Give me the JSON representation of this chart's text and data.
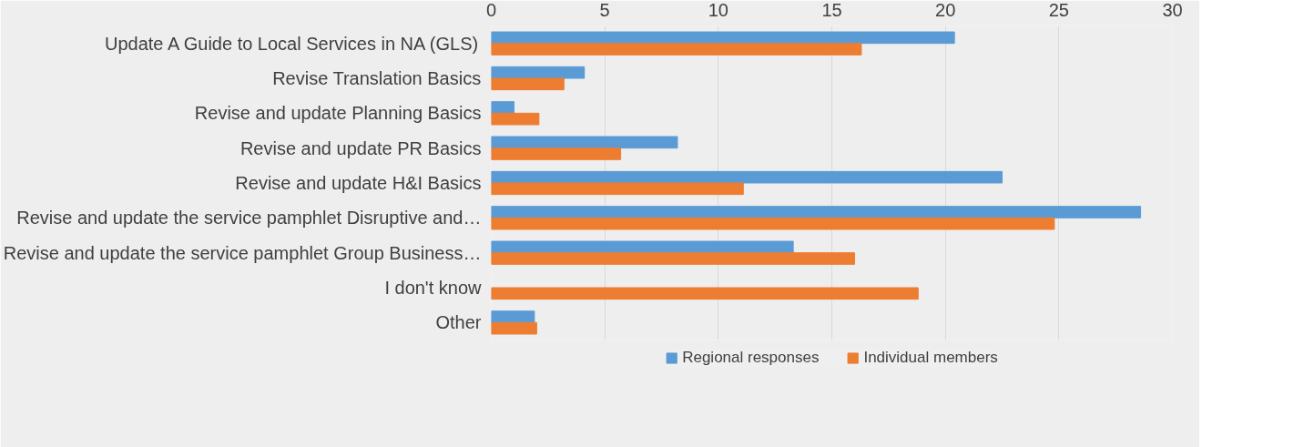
{
  "chart_data": {
    "type": "bar",
    "orientation": "horizontal",
    "categories": [
      "Update A Guide to Local Services in NA (GLS)",
      "Revise Translation Basics",
      "Revise and update Planning Basics",
      "Revise and update PR Basics",
      "Revise and update H&I Basics",
      "Revise and update the service pamphlet Disruptive and…",
      "Revise and update the service pamphlet Group Business…",
      "I don't know",
      "Other"
    ],
    "series": [
      {
        "name": "Regional responses",
        "color": "#5b9bd5",
        "values": [
          20.4,
          4.1,
          1.0,
          8.2,
          22.5,
          28.6,
          13.3,
          null,
          1.9
        ]
      },
      {
        "name": "Individual members",
        "color": "#ed7d31",
        "values": [
          16.3,
          3.2,
          2.1,
          5.7,
          11.1,
          24.8,
          16.0,
          18.8,
          2.0
        ]
      }
    ],
    "xlim": [
      0,
      30
    ],
    "xticks": [
      0,
      5,
      10,
      15,
      20,
      25,
      30
    ],
    "grid": "x",
    "legend": "bottom"
  }
}
